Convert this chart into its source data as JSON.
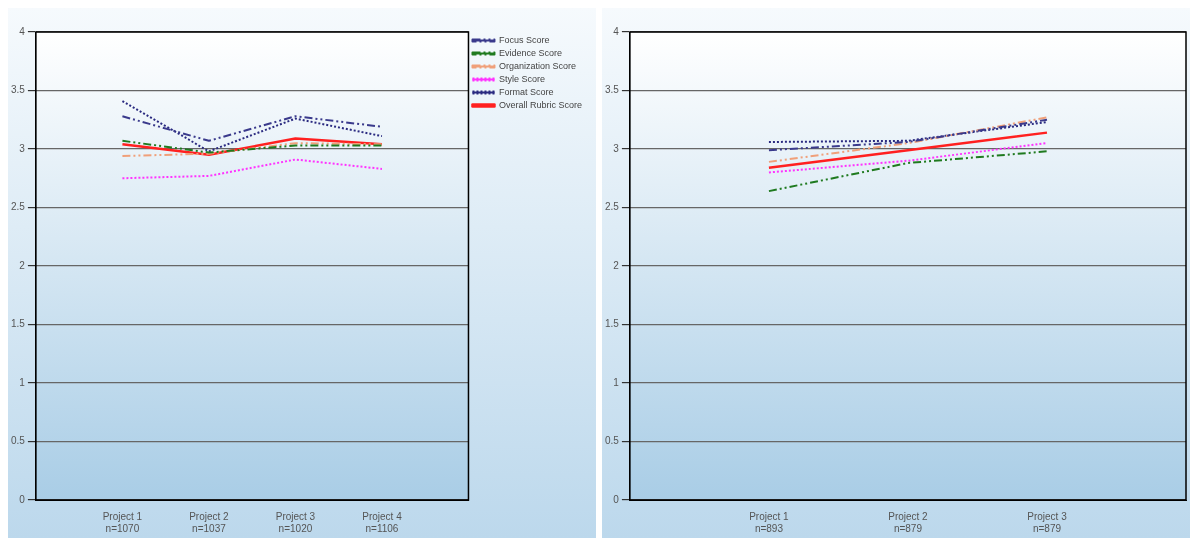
{
  "chart_data": [
    {
      "type": "line",
      "categories": [
        "Project 1\nn=1070",
        "Project 2\nn=1037",
        "Project 3\nn=1020",
        "Project 4\nn=1106"
      ],
      "ylim": [
        0,
        4
      ],
      "yticks": [
        0,
        0.5,
        1,
        1.5,
        2,
        2.5,
        3,
        3.5,
        4
      ],
      "grid": "y",
      "legend": "top right",
      "marker": "none",
      "series": [
        {
          "name": "Focus Score",
          "color": "#3a3a8c",
          "line_style": "dashed",
          "values": [
            3.28,
            3.07,
            3.28,
            3.19
          ]
        },
        {
          "name": "Evidence Score",
          "color": "#1f7a1f",
          "line_style": "dashed",
          "values": [
            3.07,
            2.97,
            3.03,
            3.03
          ]
        },
        {
          "name": "Organization Score",
          "color": "#f0a07a",
          "line_style": "dashed",
          "values": [
            2.94,
            2.96,
            3.05,
            3.04
          ]
        },
        {
          "name": "Style Score",
          "color": "#ff33ff",
          "line_style": "dotted",
          "values": [
            2.75,
            2.77,
            2.91,
            2.83
          ]
        },
        {
          "name": "Format Score",
          "color": "#2a2a80",
          "line_style": "dotted",
          "values": [
            3.41,
            2.98,
            3.26,
            3.11
          ]
        },
        {
          "name": "Overall Rubric Score",
          "color": "#ff2020",
          "line_style": "solid",
          "values": [
            3.04,
            2.95,
            3.09,
            3.04
          ]
        }
      ]
    },
    {
      "type": "line",
      "categories": [
        "Project 1\nn=893",
        "Project 2\nn=879",
        "Project 3\nn=879"
      ],
      "ylim": [
        0,
        4
      ],
      "yticks": [
        0,
        0.5,
        1,
        1.5,
        2,
        2.5,
        3,
        3.5,
        4
      ],
      "grid": "y",
      "marker": "none",
      "series": [
        {
          "color": "#3a3a8c",
          "line_style": "dashed",
          "values": [
            2.99,
            3.06,
            3.25
          ]
        },
        {
          "color": "#1f7a1f",
          "line_style": "dashed",
          "values": [
            2.64,
            2.88,
            2.98
          ]
        },
        {
          "color": "#f0a07a",
          "line_style": "dashed",
          "values": [
            2.89,
            3.05,
            3.27
          ]
        },
        {
          "color": "#ff33ff",
          "line_style": "dotted",
          "values": [
            2.8,
            2.9,
            3.05
          ]
        },
        {
          "color": "#2a2a80",
          "line_style": "dotted",
          "values": [
            3.06,
            3.07,
            3.23
          ]
        },
        {
          "color": "#ff2020",
          "line_style": "solid",
          "values": [
            2.84,
            2.99,
            3.14
          ]
        }
      ]
    }
  ]
}
